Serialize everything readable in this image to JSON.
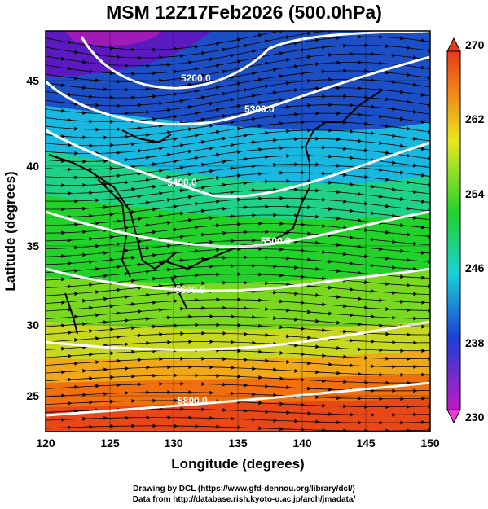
{
  "title": "MSM 12Z17Feb2026 (500.0hPa)",
  "axes": {
    "xlabel": "Longitude (degrees)",
    "ylabel": "Latitude  (degrees)",
    "x_ticks": [
      "120",
      "125",
      "130",
      "135",
      "140",
      "145",
      "150"
    ],
    "y_ticks": [
      "25",
      "30",
      "35",
      "40",
      "45"
    ]
  },
  "colorbar": {
    "labels": [
      "270",
      "262",
      "254",
      "246",
      "238",
      "230"
    ],
    "values": [
      270,
      262,
      254,
      246,
      238,
      230
    ]
  },
  "contours": [
    {
      "label": "5200.0",
      "value": 5200
    },
    {
      "label": "5300.0",
      "value": 5300
    },
    {
      "label": "5400.0",
      "value": 5400
    },
    {
      "label": "5500.0",
      "value": 5500
    },
    {
      "label": "5600.0",
      "value": 5600
    },
    {
      "label": "5800.0",
      "value": 5800
    }
  ],
  "credits": {
    "line1": "Drawing by DCL (https://www.gfd-dennou.org/library/dcl/)",
    "line2": "Data from http://database.rish.kyoto-u.ac.jp/arch/jmadata/"
  },
  "colors": {
    "purple": "#9a1ab8",
    "blue": "#1c3fd6",
    "cyan": "#10c8e8",
    "green": "#22d22a",
    "yellow": "#e0e020",
    "orange": "#f07810",
    "red": "#e82810",
    "contour": "#ffffff"
  }
}
